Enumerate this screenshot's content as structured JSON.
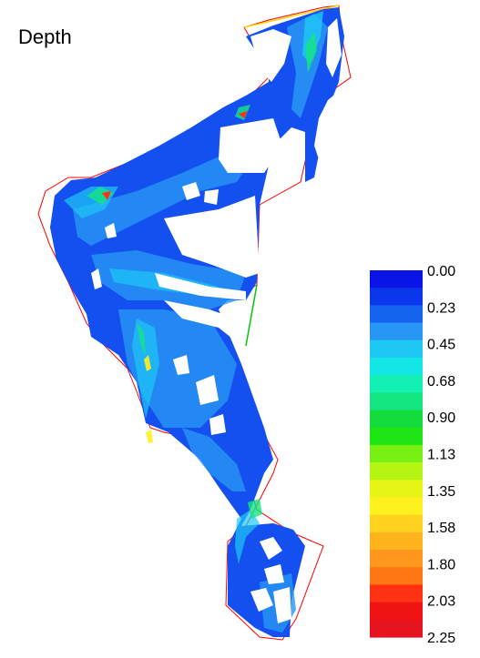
{
  "title": "Depth",
  "legend": {
    "labels": [
      "0.00",
      "0.23",
      "0.45",
      "0.68",
      "0.90",
      "1.13",
      "1.35",
      "1.58",
      "1.80",
      "2.03",
      "2.25"
    ],
    "colors": [
      "#0a14e6",
      "#0a37eb",
      "#1464f0",
      "#2896f5",
      "#1ec8f5",
      "#14e6e6",
      "#14f0b4",
      "#14e682",
      "#14dc3c",
      "#1ee614",
      "#78f014",
      "#b4f514",
      "#e6f514",
      "#fff01e",
      "#ffd21e",
      "#ffb41e",
      "#ff961e",
      "#ff7814",
      "#ff3214",
      "#f01414",
      "#e6141e"
    ]
  },
  "colors": {
    "boundary_outline": "#ff0000",
    "boundary_top": "#ffd700",
    "boundary_right": "#00c800",
    "water_base": "#1450f0"
  }
}
